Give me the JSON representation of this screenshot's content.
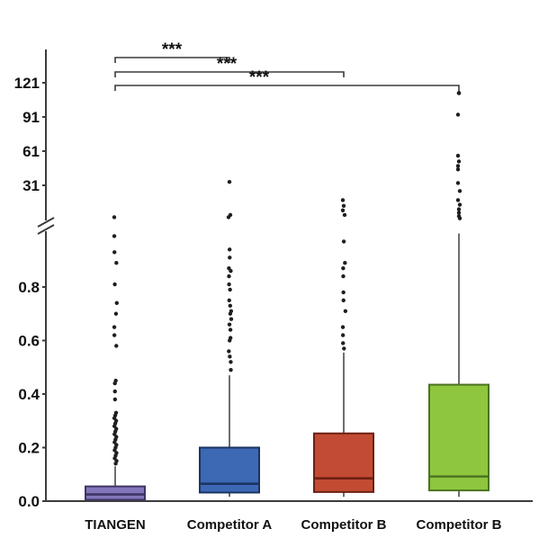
{
  "figure": {
    "background": "#ffffff",
    "axis_color": "#3c3c3c",
    "outlier_color": "#1f1f1f",
    "text_color": "#111111"
  },
  "chart_data": {
    "type": "box",
    "title": "",
    "xlabel": "",
    "ylabel": "",
    "categories": [
      "TIANGEN",
      "Competitor A",
      "Competitor B",
      "Competitor B"
    ],
    "y_axis": {
      "broken_axis": true,
      "upper_ticks": [
        "121",
        "91",
        "61",
        "31"
      ],
      "upper_tick_values": [
        121,
        91,
        61,
        31
      ],
      "lower_ticks": [
        "0.8",
        "0.6",
        "0.4",
        "0.2",
        "0.0"
      ],
      "lower_tick_values": [
        0.8,
        0.6,
        0.4,
        0.2,
        0.0
      ],
      "lower_range": [
        0,
        1.0
      ],
      "upper_range": [
        2,
        135
      ]
    },
    "series": [
      {
        "name": "TIANGEN",
        "fill": "#8476ba",
        "stroke": "#3f3565",
        "whisker_low": null,
        "q1": 0.005,
        "median": 0.025,
        "q3": 0.055,
        "whisker_high": 0.13,
        "outliers": [
          0.14,
          0.15,
          0.16,
          0.17,
          0.18,
          0.19,
          0.2,
          0.21,
          0.22,
          0.23,
          0.24,
          0.25,
          0.26,
          0.27,
          0.28,
          0.29,
          0.3,
          0.31,
          0.32,
          0.33,
          0.38,
          0.41,
          0.44,
          0.45,
          0.58,
          0.62,
          0.65,
          0.7,
          0.74,
          0.81,
          0.89,
          0.93,
          0.99,
          3
        ]
      },
      {
        "name": "Competitor A",
        "fill": "#3d68b4",
        "stroke": "#1b3463",
        "whisker_low": 0.016,
        "q1": 0.032,
        "median": 0.065,
        "q3": 0.2,
        "whisker_high": 0.47,
        "outliers": [
          0.49,
          0.52,
          0.54,
          0.56,
          0.6,
          0.61,
          0.64,
          0.66,
          0.68,
          0.7,
          0.71,
          0.73,
          0.75,
          0.79,
          0.81,
          0.84,
          0.86,
          0.87,
          0.91,
          0.94,
          3,
          5,
          34
        ]
      },
      {
        "name": "Competitor B",
        "fill": "#c24b33",
        "stroke": "#6e2013",
        "whisker_low": 0.016,
        "q1": 0.034,
        "median": 0.085,
        "q3": 0.253,
        "whisker_high": 0.555,
        "outliers": [
          0.57,
          0.59,
          0.62,
          0.65,
          0.71,
          0.75,
          0.78,
          0.84,
          0.87,
          0.89,
          0.97,
          5,
          9,
          13,
          18
        ]
      },
      {
        "name": "Competitor B",
        "fill": "#8ec63e",
        "stroke": "#4b7320",
        "whisker_low": 0.016,
        "q1": 0.04,
        "median": 0.092,
        "q3": 0.435,
        "whisker_high": 1.0,
        "outliers": [
          2,
          4,
          7,
          10,
          14,
          18,
          26,
          33,
          45,
          48,
          52,
          57,
          93,
          112
        ]
      }
    ],
    "significance": [
      {
        "from": 0,
        "to": 1,
        "label": "***"
      },
      {
        "from": 0,
        "to": 2,
        "label": "***"
      },
      {
        "from": 0,
        "to": 3,
        "label": "***"
      }
    ],
    "legend": "none",
    "grid": false
  }
}
